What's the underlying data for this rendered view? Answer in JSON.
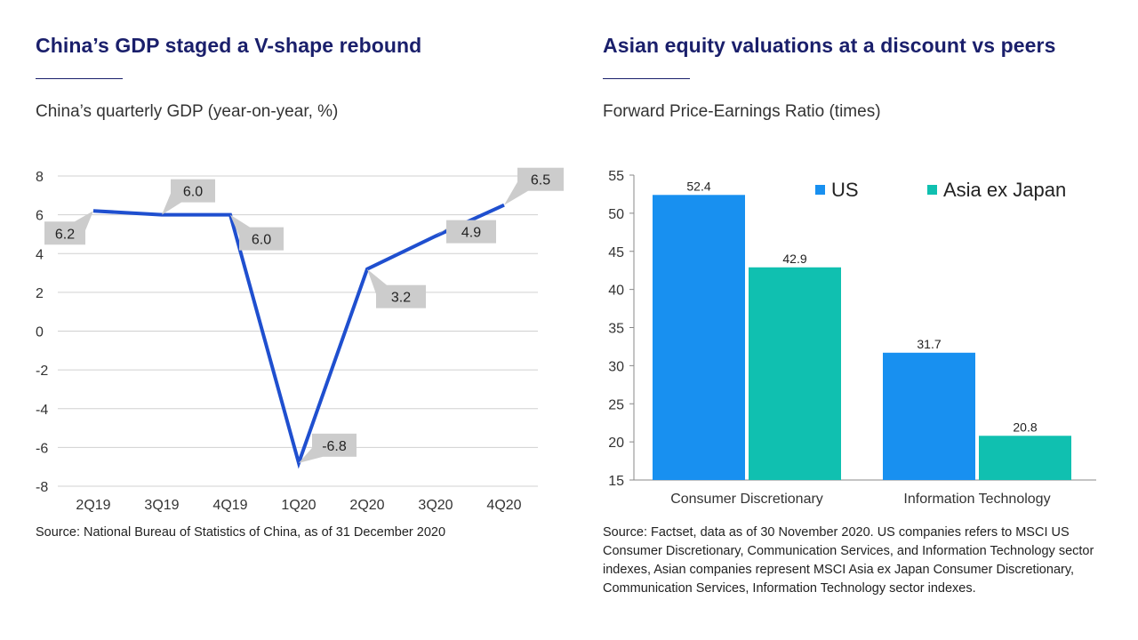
{
  "left_panel": {
    "title": "China’s GDP staged a V-shape rebound",
    "subtitle": "China’s quarterly GDP (year-on-year, %)",
    "source": "Source: National Bureau of Statistics of China, as of 31 December 2020"
  },
  "right_panel": {
    "title": "Asian equity valuations at a discount vs peers",
    "subtitle": "Forward Price-Earnings Ratio (times)",
    "source": "Source: Factset, data as of 30 November 2020. US companies refers to MSCI US Consumer Discretionary, Communication Services, and Information Technology sector indexes, Asian companies represent MSCI Asia ex Japan Consumer Discretionary, Communication Services, Information Technology sector indexes."
  },
  "colors": {
    "title": "#1a1f6b",
    "line": "#1f4fcf",
    "us": "#1890f0",
    "asia": "#10c0b0",
    "callout": "#cccccc",
    "grid": "#d0d0d0"
  },
  "chart_data": [
    {
      "type": "line",
      "x": [
        "2Q19",
        "3Q19",
        "4Q19",
        "1Q20",
        "2Q20",
        "3Q20",
        "4Q20"
      ],
      "series": [
        {
          "values": [
            6.2,
            6.0,
            6.0,
            -6.8,
            3.2,
            4.9,
            6.5
          ]
        }
      ],
      "data_labels": [
        "6.2",
        "6.0",
        "6.0",
        "-6.8",
        "3.2",
        "4.9",
        "6.5"
      ],
      "yticks": [
        "8",
        "6",
        "4",
        "2",
        "0",
        "-2",
        "-4",
        "-6",
        "-8"
      ],
      "ylim": [
        -8,
        8
      ],
      "grid": true
    },
    {
      "type": "bar",
      "categories": [
        "Consumer Discretionary",
        "Information Technology"
      ],
      "series": [
        {
          "name": "US",
          "values": [
            52.4,
            31.7
          ]
        },
        {
          "name": "Asia ex Japan",
          "values": [
            42.9,
            20.8
          ]
        }
      ],
      "data_labels": [
        [
          "52.4",
          "31.7"
        ],
        [
          "42.9",
          "20.8"
        ]
      ],
      "yticks": [
        "55",
        "50",
        "45",
        "40",
        "35",
        "30",
        "25",
        "20",
        "15"
      ],
      "ylim": [
        15,
        55
      ],
      "grid": false,
      "legend_position": "top-right"
    }
  ]
}
